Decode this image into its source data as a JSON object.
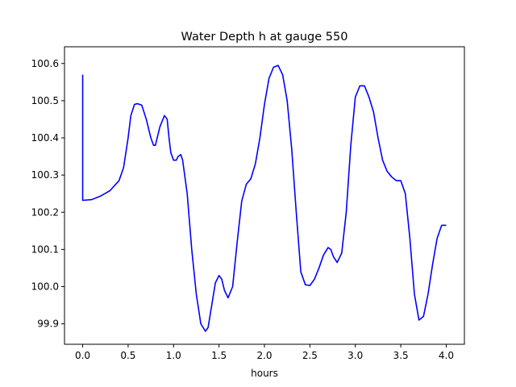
{
  "chart_data": {
    "type": "line",
    "title": "Water Depth h at gauge 550",
    "xlabel": "hours",
    "ylabel": "",
    "xlim": [
      -0.2,
      4.2
    ],
    "ylim": [
      99.845,
      100.645
    ],
    "xticks": [
      0.0,
      0.5,
      1.0,
      1.5,
      2.0,
      2.5,
      3.0,
      3.5,
      4.0
    ],
    "xtick_labels": [
      "0.0",
      "0.5",
      "1.0",
      "1.5",
      "2.0",
      "2.5",
      "3.0",
      "3.5",
      "4.0"
    ],
    "yticks": [
      99.9,
      100.0,
      100.1,
      100.2,
      100.3,
      100.4,
      100.5,
      100.6
    ],
    "ytick_labels": [
      "99.9",
      "100.0",
      "100.1",
      "100.2",
      "100.3",
      "100.4",
      "100.5",
      "100.6"
    ],
    "grid": false,
    "series": [
      {
        "name": "",
        "color": "#0000ff",
        "x": [
          0.0,
          0.0,
          0.0,
          0.1,
          0.2,
          0.3,
          0.4,
          0.45,
          0.5,
          0.53,
          0.57,
          0.6,
          0.65,
          0.7,
          0.75,
          0.78,
          0.8,
          0.85,
          0.9,
          0.93,
          0.95,
          0.97,
          1.0,
          1.03,
          1.05,
          1.08,
          1.1,
          1.15,
          1.2,
          1.25,
          1.3,
          1.35,
          1.38,
          1.42,
          1.46,
          1.5,
          1.53,
          1.56,
          1.6,
          1.65,
          1.7,
          1.75,
          1.8,
          1.85,
          1.9,
          1.95,
          2.0,
          2.05,
          2.1,
          2.15,
          2.2,
          2.25,
          2.3,
          2.35,
          2.4,
          2.45,
          2.5,
          2.55,
          2.6,
          2.65,
          2.7,
          2.73,
          2.76,
          2.8,
          2.85,
          2.9,
          2.95,
          3.0,
          3.05,
          3.1,
          3.15,
          3.2,
          3.25,
          3.3,
          3.35,
          3.4,
          3.45,
          3.5,
          3.55,
          3.6,
          3.65,
          3.7,
          3.75,
          3.8,
          3.85,
          3.9,
          3.95,
          4.0
        ],
        "values": [
          100.57,
          100.35,
          100.232,
          100.234,
          100.244,
          100.258,
          100.285,
          100.32,
          100.4,
          100.46,
          100.49,
          100.492,
          100.488,
          100.45,
          100.4,
          100.38,
          100.38,
          100.43,
          100.46,
          100.45,
          100.4,
          100.36,
          100.34,
          100.34,
          100.35,
          100.355,
          100.34,
          100.25,
          100.1,
          99.98,
          99.9,
          99.88,
          99.89,
          99.95,
          100.01,
          100.03,
          100.02,
          99.99,
          99.97,
          100.0,
          100.12,
          100.23,
          100.275,
          100.29,
          100.33,
          100.4,
          100.49,
          100.56,
          100.59,
          100.595,
          100.57,
          100.5,
          100.37,
          100.2,
          100.04,
          100.005,
          100.003,
          100.02,
          100.05,
          100.085,
          100.105,
          100.1,
          100.08,
          100.065,
          100.09,
          100.2,
          100.38,
          100.51,
          100.54,
          100.54,
          100.51,
          100.47,
          100.4,
          100.34,
          100.31,
          100.295,
          100.285,
          100.285,
          100.25,
          100.13,
          99.98,
          99.91,
          99.92,
          99.98,
          100.06,
          100.13,
          100.165,
          100.165
        ]
      }
    ]
  }
}
